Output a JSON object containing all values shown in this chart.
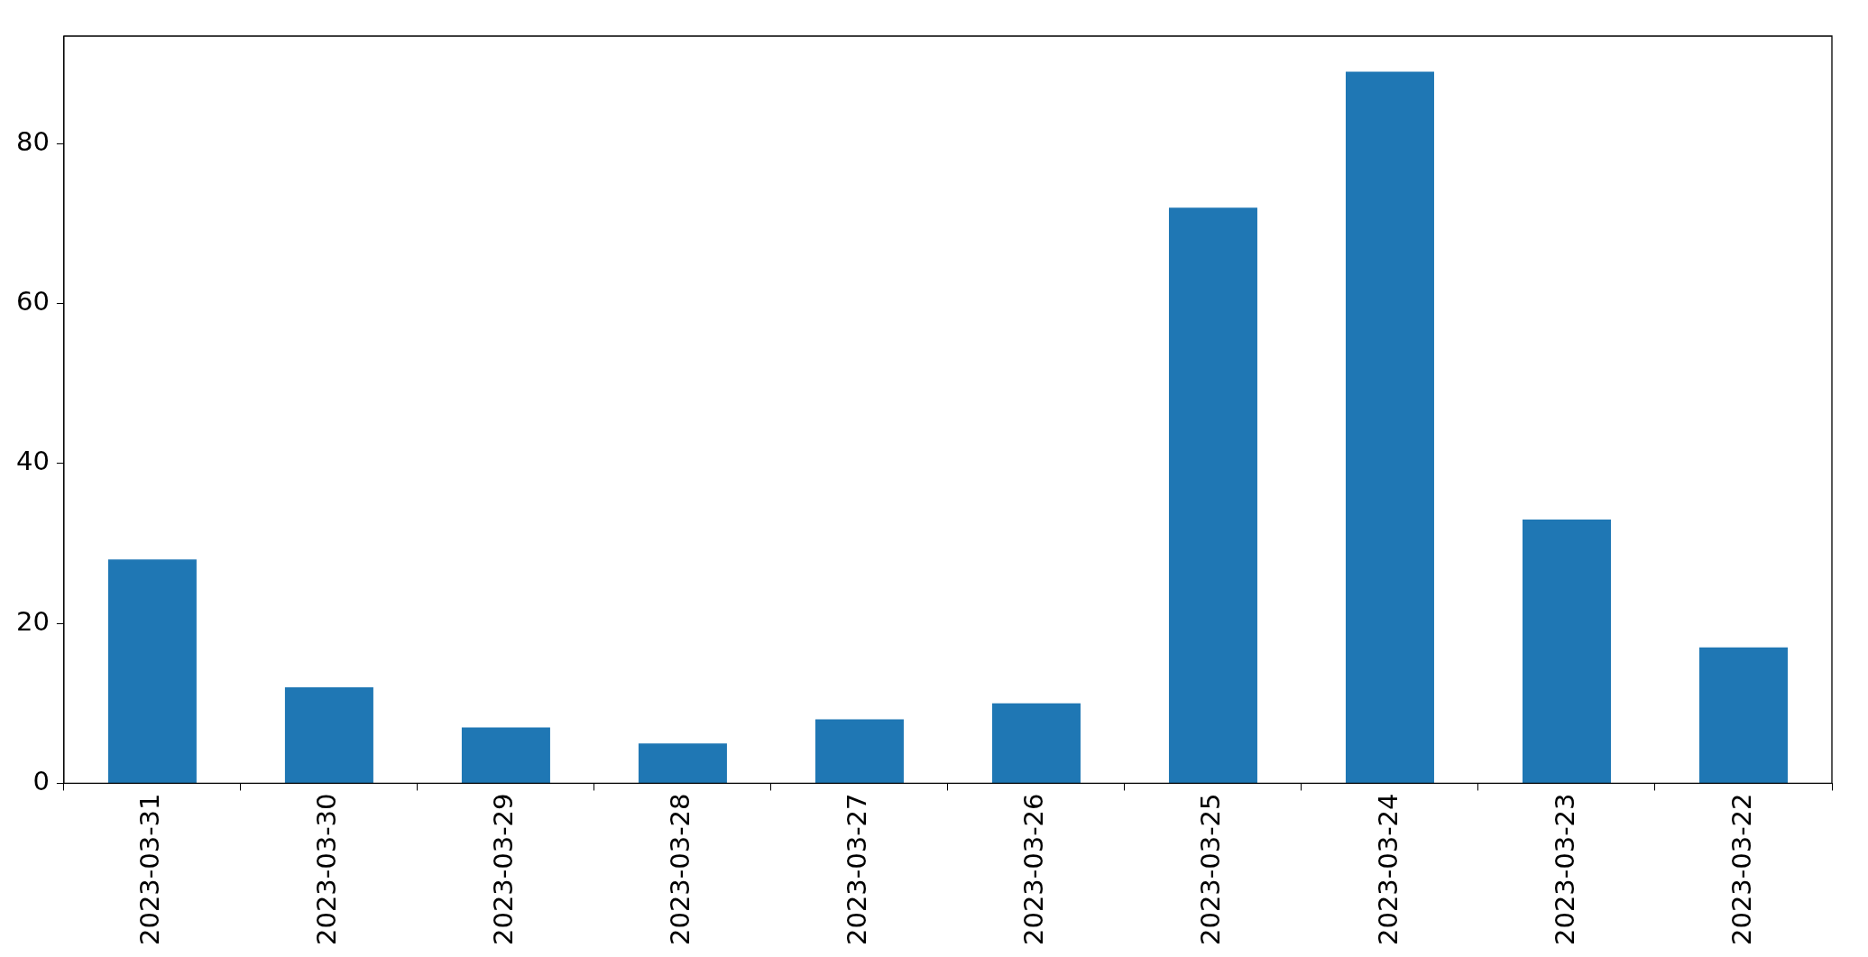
{
  "chart_data": {
    "type": "bar",
    "categories": [
      "2023-03-31",
      "2023-03-30",
      "2023-03-29",
      "2023-03-28",
      "2023-03-27",
      "2023-03-26",
      "2023-03-25",
      "2023-03-24",
      "2023-03-23",
      "2023-03-22"
    ],
    "values": [
      28,
      12,
      7,
      5,
      8,
      10,
      72,
      89,
      33,
      17
    ],
    "color": "#1f77b4",
    "ylim": [
      0,
      93.45
    ],
    "yticks": [
      0,
      20,
      40,
      60,
      80
    ],
    "grid": false,
    "legend": false
  }
}
